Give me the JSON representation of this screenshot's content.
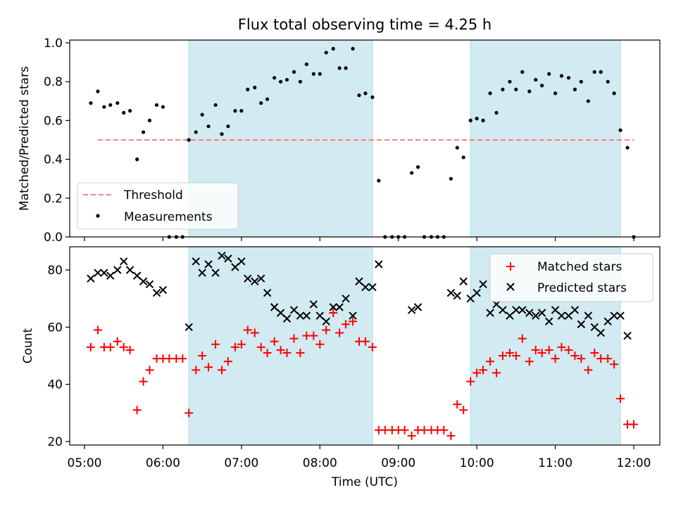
{
  "chart_data": {
    "title": "Flux total observing time = 4.25 h",
    "xlabel": "Time (UTC)",
    "x_ticks": [
      "05:00",
      "06:00",
      "07:00",
      "08:00",
      "09:00",
      "10:00",
      "11:00",
      "12:00"
    ],
    "x_tick_hours": [
      5,
      6,
      7,
      8,
      9,
      10,
      11,
      12
    ],
    "xlim_hours": [
      4.83,
      12.33
    ],
    "shaded_intervals_hours": [
      [
        6.33,
        8.67
      ],
      [
        9.92,
        11.83
      ]
    ],
    "colors": {
      "shade": "#add8e6",
      "threshold": "#ff7f7f",
      "matched": "#ff0000",
      "predicted": "#000000",
      "measurement": "#000000"
    },
    "top": {
      "type": "scatter",
      "ylabel": "Matched/Predicted stars",
      "ylim": [
        0,
        1.0
      ],
      "y_ticks": [
        "0.0",
        "0.2",
        "0.4",
        "0.6",
        "0.8",
        "1.0"
      ],
      "threshold": 0.5,
      "threshold_range_hours": [
        5.17,
        12.0
      ],
      "legend": {
        "placement": "lower-left",
        "threshold_label": "Threshold",
        "measurements_label": "Measurements"
      },
      "measurements": [
        [
          5.08,
          0.69
        ],
        [
          5.17,
          0.75
        ],
        [
          5.25,
          0.67
        ],
        [
          5.33,
          0.68
        ],
        [
          5.42,
          0.69
        ],
        [
          5.5,
          0.64
        ],
        [
          5.58,
          0.65
        ],
        [
          5.67,
          0.4
        ],
        [
          5.75,
          0.54
        ],
        [
          5.83,
          0.6
        ],
        [
          5.92,
          0.68
        ],
        [
          6.0,
          0.67
        ],
        [
          6.08,
          0
        ],
        [
          6.17,
          0
        ],
        [
          6.25,
          0
        ],
        [
          6.33,
          0.5
        ],
        [
          6.42,
          0.54
        ],
        [
          6.5,
          0.63
        ],
        [
          6.58,
          0.57
        ],
        [
          6.67,
          0.68
        ],
        [
          6.75,
          0.53
        ],
        [
          6.83,
          0.57
        ],
        [
          6.92,
          0.65
        ],
        [
          7.0,
          0.65
        ],
        [
          7.08,
          0.76
        ],
        [
          7.17,
          0.77
        ],
        [
          7.25,
          0.69
        ],
        [
          7.33,
          0.71
        ],
        [
          7.42,
          0.82
        ],
        [
          7.5,
          0.8
        ],
        [
          7.58,
          0.81
        ],
        [
          7.67,
          0.85
        ],
        [
          7.75,
          0.8
        ],
        [
          7.83,
          0.89
        ],
        [
          7.92,
          0.84
        ],
        [
          8.0,
          0.84
        ],
        [
          8.08,
          0.95
        ],
        [
          8.17,
          0.97
        ],
        [
          8.25,
          0.87
        ],
        [
          8.33,
          0.87
        ],
        [
          8.42,
          0.97
        ],
        [
          8.5,
          0.73
        ],
        [
          8.58,
          0.74
        ],
        [
          8.67,
          0.72
        ],
        [
          8.75,
          0.29
        ],
        [
          8.83,
          0
        ],
        [
          8.92,
          0
        ],
        [
          9.0,
          0
        ],
        [
          9.08,
          0
        ],
        [
          9.17,
          0.33
        ],
        [
          9.25,
          0.36
        ],
        [
          9.33,
          0
        ],
        [
          9.42,
          0
        ],
        [
          9.5,
          0
        ],
        [
          9.58,
          0
        ],
        [
          9.67,
          0.3
        ],
        [
          9.75,
          0.46
        ],
        [
          9.83,
          0.41
        ],
        [
          9.92,
          0.6
        ],
        [
          10.0,
          0.61
        ],
        [
          10.08,
          0.6
        ],
        [
          10.17,
          0.74
        ],
        [
          10.25,
          0.64
        ],
        [
          10.33,
          0.76
        ],
        [
          10.42,
          0.8
        ],
        [
          10.5,
          0.76
        ],
        [
          10.58,
          0.85
        ],
        [
          10.67,
          0.75
        ],
        [
          10.75,
          0.81
        ],
        [
          10.83,
          0.78
        ],
        [
          10.92,
          0.84
        ],
        [
          11.0,
          0.74
        ],
        [
          11.08,
          0.83
        ],
        [
          11.17,
          0.82
        ],
        [
          11.25,
          0.76
        ],
        [
          11.33,
          0.8
        ],
        [
          11.42,
          0.7
        ],
        [
          11.5,
          0.85
        ],
        [
          11.58,
          0.85
        ],
        [
          11.67,
          0.8
        ],
        [
          11.75,
          0.74
        ],
        [
          11.83,
          0.55
        ],
        [
          11.92,
          0.46
        ],
        [
          12.0,
          0
        ]
      ]
    },
    "bottom": {
      "type": "scatter",
      "ylabel": "Count",
      "ylim": [
        19.5,
        89
      ],
      "y_ticks": [
        20,
        40,
        60,
        80
      ],
      "legend": {
        "placement": "upper-right",
        "matched_label": "Matched stars",
        "predicted_label": "Predicted stars"
      },
      "matched": [
        [
          5.08,
          53
        ],
        [
          5.17,
          59
        ],
        [
          5.25,
          53
        ],
        [
          5.33,
          53
        ],
        [
          5.42,
          55
        ],
        [
          5.5,
          53
        ],
        [
          5.58,
          52
        ],
        [
          5.67,
          31
        ],
        [
          5.75,
          41
        ],
        [
          5.83,
          45
        ],
        [
          5.92,
          49
        ],
        [
          6.0,
          49
        ],
        [
          6.08,
          49
        ],
        [
          6.17,
          49
        ],
        [
          6.25,
          49
        ],
        [
          6.33,
          30
        ],
        [
          6.42,
          45
        ],
        [
          6.5,
          50
        ],
        [
          6.58,
          46
        ],
        [
          6.67,
          54
        ],
        [
          6.75,
          45
        ],
        [
          6.83,
          48
        ],
        [
          6.92,
          53
        ],
        [
          7.0,
          54
        ],
        [
          7.08,
          59
        ],
        [
          7.17,
          58
        ],
        [
          7.25,
          53
        ],
        [
          7.33,
          51
        ],
        [
          7.42,
          55
        ],
        [
          7.5,
          52
        ],
        [
          7.58,
          51
        ],
        [
          7.67,
          56
        ],
        [
          7.75,
          51
        ],
        [
          7.83,
          57
        ],
        [
          7.92,
          57
        ],
        [
          8.0,
          54
        ],
        [
          8.08,
          59
        ],
        [
          8.17,
          65
        ],
        [
          8.25,
          58
        ],
        [
          8.33,
          61
        ],
        [
          8.42,
          62
        ],
        [
          8.5,
          55
        ],
        [
          8.58,
          55
        ],
        [
          8.67,
          53
        ],
        [
          8.75,
          24
        ],
        [
          8.83,
          24
        ],
        [
          8.92,
          24
        ],
        [
          9.0,
          24
        ],
        [
          9.08,
          24
        ],
        [
          9.17,
          22
        ],
        [
          9.25,
          24
        ],
        [
          9.33,
          24
        ],
        [
          9.42,
          24
        ],
        [
          9.5,
          24
        ],
        [
          9.58,
          24
        ],
        [
          9.67,
          22
        ],
        [
          9.75,
          33
        ],
        [
          9.83,
          31
        ],
        [
          9.92,
          41
        ],
        [
          10.0,
          44
        ],
        [
          10.08,
          45
        ],
        [
          10.17,
          48
        ],
        [
          10.25,
          44
        ],
        [
          10.33,
          50
        ],
        [
          10.42,
          51
        ],
        [
          10.5,
          50
        ],
        [
          10.58,
          56
        ],
        [
          10.67,
          48
        ],
        [
          10.75,
          52
        ],
        [
          10.83,
          51
        ],
        [
          10.92,
          52
        ],
        [
          11.0,
          49
        ],
        [
          11.08,
          53
        ],
        [
          11.17,
          52
        ],
        [
          11.25,
          50
        ],
        [
          11.33,
          49
        ],
        [
          11.42,
          45
        ],
        [
          11.5,
          51
        ],
        [
          11.58,
          49
        ],
        [
          11.67,
          49
        ],
        [
          11.75,
          47
        ],
        [
          11.83,
          35
        ],
        [
          11.92,
          26
        ],
        [
          12.0,
          26
        ]
      ],
      "predicted": [
        [
          5.08,
          77
        ],
        [
          5.17,
          79
        ],
        [
          5.25,
          79
        ],
        [
          5.33,
          78
        ],
        [
          5.42,
          80
        ],
        [
          5.5,
          83
        ],
        [
          5.58,
          80
        ],
        [
          5.67,
          78
        ],
        [
          5.75,
          76
        ],
        [
          5.83,
          75
        ],
        [
          5.92,
          72
        ],
        [
          6.0,
          73
        ],
        [
          6.33,
          60
        ],
        [
          6.42,
          83
        ],
        [
          6.5,
          79
        ],
        [
          6.58,
          82
        ],
        [
          6.67,
          79
        ],
        [
          6.75,
          85
        ],
        [
          6.83,
          84
        ],
        [
          6.92,
          81
        ],
        [
          7.0,
          83
        ],
        [
          7.08,
          77
        ],
        [
          7.17,
          76
        ],
        [
          7.25,
          77
        ],
        [
          7.33,
          72
        ],
        [
          7.42,
          67
        ],
        [
          7.5,
          65
        ],
        [
          7.58,
          63
        ],
        [
          7.67,
          66
        ],
        [
          7.75,
          64
        ],
        [
          7.83,
          64
        ],
        [
          7.92,
          68
        ],
        [
          8.0,
          64
        ],
        [
          8.08,
          62
        ],
        [
          8.17,
          67
        ],
        [
          8.25,
          67
        ],
        [
          8.33,
          70
        ],
        [
          8.42,
          64
        ],
        [
          8.5,
          76
        ],
        [
          8.58,
          74
        ],
        [
          8.67,
          74
        ],
        [
          8.75,
          82
        ],
        [
          9.17,
          66
        ],
        [
          9.25,
          67
        ],
        [
          9.67,
          72
        ],
        [
          9.75,
          71
        ],
        [
          9.83,
          76
        ],
        [
          9.92,
          70
        ],
        [
          10.0,
          72
        ],
        [
          10.08,
          75
        ],
        [
          10.17,
          65
        ],
        [
          10.25,
          68
        ],
        [
          10.33,
          66
        ],
        [
          10.42,
          64
        ],
        [
          10.5,
          66
        ],
        [
          10.58,
          66
        ],
        [
          10.67,
          65
        ],
        [
          10.75,
          64
        ],
        [
          10.83,
          65
        ],
        [
          10.92,
          62
        ],
        [
          11.0,
          66
        ],
        [
          11.08,
          64
        ],
        [
          11.17,
          64
        ],
        [
          11.25,
          66
        ],
        [
          11.33,
          61
        ],
        [
          11.42,
          64
        ],
        [
          11.5,
          60
        ],
        [
          11.58,
          58
        ],
        [
          11.67,
          62
        ],
        [
          11.75,
          64
        ],
        [
          11.83,
          64
        ],
        [
          11.92,
          57
        ]
      ]
    }
  }
}
